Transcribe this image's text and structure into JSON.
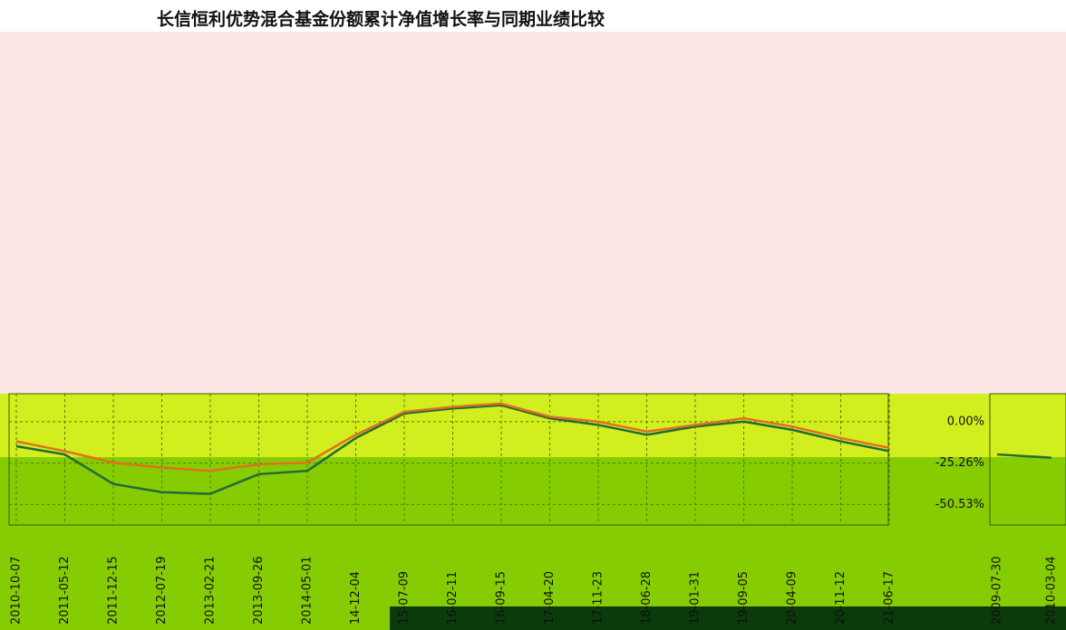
{
  "chart_data": [
    {
      "type": "line",
      "title": "长信恒利优势混合基金份额累计净值增长率与同期业绩比较",
      "categories": [
        "2010-10-07",
        "2011-05-12",
        "2011-12-15",
        "2012-07-19",
        "2013-02-21",
        "2013-09-26",
        "2014-05-01",
        "14-12-04",
        "15-07-09",
        "16-02-11",
        "16-09-15",
        "17-04-20",
        "17-11-23",
        "18-06-28",
        "19-01-31",
        "19-09-05",
        "20-04-09",
        "20-11-12",
        "21-06-17"
      ],
      "series": [
        {
          "color": "#1f6b3a",
          "values": [
            -15,
            -20,
            -38,
            -43,
            -44,
            -32,
            -30,
            -10,
            5,
            8,
            10,
            2,
            -2,
            -8,
            -3,
            0,
            -5,
            -12,
            -18
          ]
        },
        {
          "color": "#e07020",
          "values": [
            -12,
            -18,
            -25,
            -28,
            -30,
            -26,
            -25,
            -8,
            6,
            9,
            11,
            3,
            0,
            -6,
            -2,
            2,
            -3,
            -10,
            -16
          ]
        }
      ],
      "ylim": [
        -63,
        17
      ],
      "yticks": [
        {
          "value": 0,
          "label": "0.00%"
        },
        {
          "value": -25.26,
          "label": "-25.26%"
        },
        {
          "value": -50.53,
          "label": "-50.53%"
        }
      ],
      "grid": true
    },
    {
      "type": "line",
      "categories": [
        "2009-07-30",
        "2010-03-04"
      ],
      "values": [
        -20,
        -22
      ],
      "color": "#1f6b3a",
      "ylim": [
        -63,
        17
      ]
    }
  ]
}
